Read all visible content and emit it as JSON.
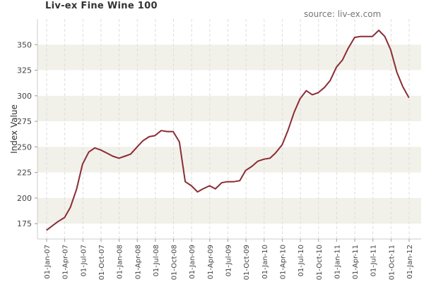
{
  "chart_data": {
    "type": "line",
    "title": "Liv-ex Fine Wine 100",
    "source": "source: liv-ex.com",
    "xlabel": "",
    "ylabel": "Index Value",
    "ylim": [
      160,
      375
    ],
    "yticks": [
      175,
      200,
      225,
      250,
      275,
      300,
      325,
      350
    ],
    "x_ticks": [
      "01-Jan-07",
      "01-Apr-07",
      "01-Jul-07",
      "01-Oct-07",
      "01-Jan-08",
      "01-Apr-08",
      "01-Jul-08",
      "01-Oct-08",
      "01-Jan-09",
      "01-Apr-09",
      "01-Jul-09",
      "01-Oct-09",
      "01-Jan-10",
      "01-Apr-10",
      "01-Jul-10",
      "01-Oct-10",
      "01-Jan-11",
      "01-Apr-11",
      "01-Jul-11",
      "01-Oct-11",
      "01-Jan-12"
    ],
    "grid": "alternating horizontal bands",
    "colors": {
      "line": "#8b2c33",
      "band": "#f1f1ea"
    },
    "series": [
      {
        "name": "",
        "x": [
          "2006-12-31",
          "2007-01-31",
          "2007-02-28",
          "2007-03-31",
          "2007-04-30",
          "2007-05-31",
          "2007-06-30",
          "2007-07-31",
          "2007-08-31",
          "2007-09-30",
          "2007-10-31",
          "2007-11-30",
          "2007-12-31",
          "2008-01-31",
          "2008-02-29",
          "2008-03-31",
          "2008-04-30",
          "2008-05-31",
          "2008-06-30",
          "2008-07-31",
          "2008-08-31",
          "2008-09-30",
          "2008-10-31",
          "2008-11-30",
          "2008-12-31",
          "2009-01-31",
          "2009-02-28",
          "2009-03-31",
          "2009-04-30",
          "2009-05-31",
          "2009-06-30",
          "2009-07-31",
          "2009-08-31",
          "2009-09-30",
          "2009-10-31",
          "2009-11-30",
          "2009-12-31",
          "2010-01-31",
          "2010-02-28",
          "2010-03-31",
          "2010-04-30",
          "2010-05-31",
          "2010-06-30",
          "2010-07-31",
          "2010-08-31",
          "2010-09-30",
          "2010-10-31",
          "2010-11-30",
          "2010-12-31",
          "2011-01-31",
          "2011-02-28",
          "2011-03-31",
          "2011-04-30",
          "2011-05-31",
          "2011-06-30",
          "2011-07-31",
          "2011-08-31",
          "2011-09-30",
          "2011-10-31",
          "2011-11-30",
          "2011-12-31"
        ],
        "values": [
          168.5,
          173,
          177,
          181,
          191,
          209,
          233,
          245,
          249,
          247,
          244,
          241,
          239,
          241,
          243,
          250,
          256,
          260,
          261,
          266,
          265,
          265,
          255,
          216,
          212,
          206,
          209,
          212,
          209,
          215,
          216,
          216,
          217,
          227,
          231,
          236,
          238,
          239,
          244,
          252,
          266,
          284,
          297,
          305,
          301,
          303,
          308,
          315,
          328,
          335,
          346,
          357,
          358,
          358,
          358,
          364,
          358,
          345,
          323,
          309,
          298
        ]
      }
    ]
  }
}
